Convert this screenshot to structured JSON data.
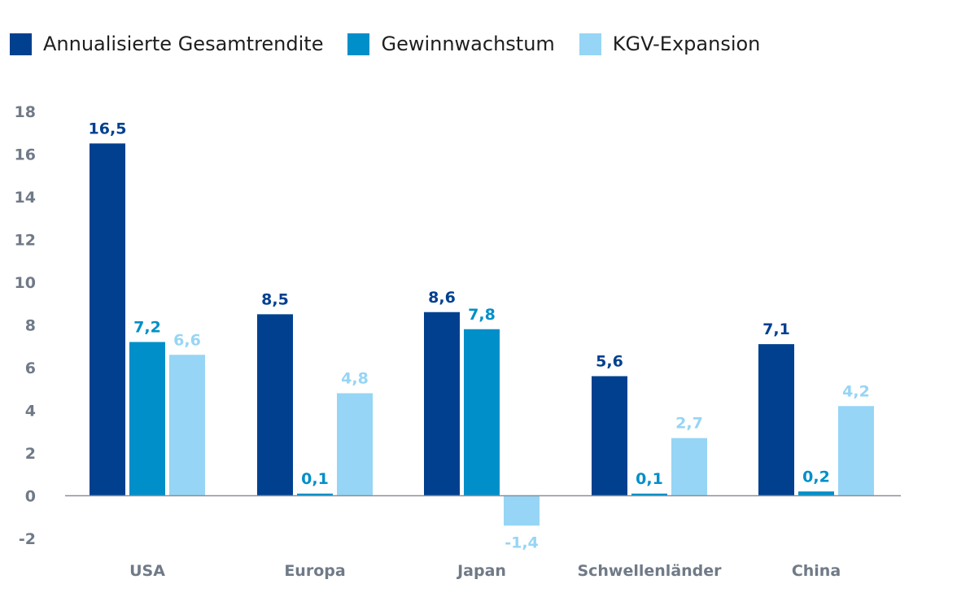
{
  "chart_data": {
    "type": "bar",
    "categories": [
      "USA",
      "Europa",
      "Japan",
      "Schwellenländer",
      "China"
    ],
    "series": [
      {
        "name": "Annualisierte Gesamtrendite",
        "color": "#00408f",
        "values": [
          16.5,
          8.5,
          8.6,
          5.6,
          7.1
        ],
        "labels": [
          "16,5",
          "8,5",
          "8,6",
          "5,6",
          "7,1"
        ]
      },
      {
        "name": "Gewinnwachstum",
        "color": "#008fc8",
        "values": [
          7.2,
          0.1,
          7.8,
          0.1,
          0.2
        ],
        "labels": [
          "7,2",
          "0,1",
          "7,8",
          "0,1",
          "0,2"
        ]
      },
      {
        "name": "KGV-Expansion",
        "color": "#96d5f5",
        "values": [
          6.6,
          4.8,
          -1.4,
          2.7,
          4.2
        ],
        "labels": [
          "6,6",
          "4,8",
          "-1,4",
          "2,7",
          "4,2"
        ]
      }
    ],
    "ylim": [
      -2,
      18
    ],
    "yticks": [
      18,
      16,
      14,
      12,
      10,
      8,
      6,
      4,
      2,
      0,
      -2
    ],
    "xlabel": "",
    "ylabel": "",
    "legend": "top-left",
    "grid": false,
    "colors": {
      "axis_text": "#707a87",
      "baseline": "#8a9099"
    }
  }
}
